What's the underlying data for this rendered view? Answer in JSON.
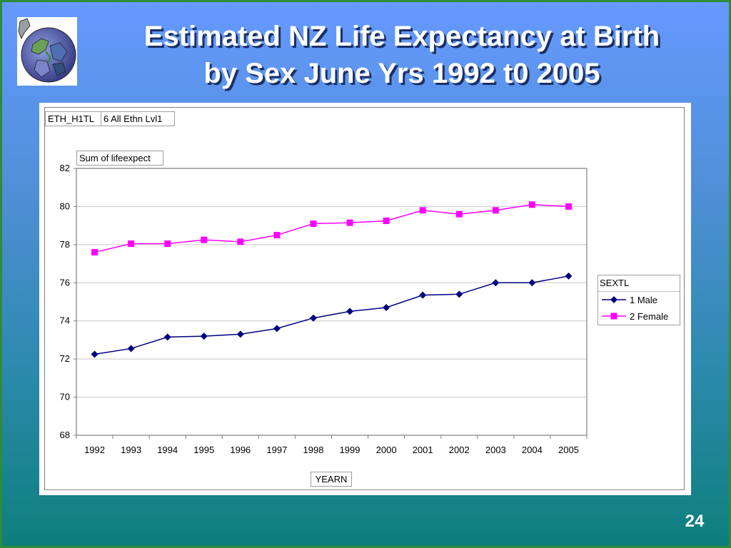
{
  "slide": {
    "title_line1": "Estimated NZ Life Expectancy at Birth",
    "title_line2": "by Sex June Yrs 1992 t0 2005",
    "page_number": "24",
    "logo_icon": "globe-icon"
  },
  "pivot": {
    "filter_field": "ETH_H1TL",
    "filter_value": "6 All Ethn Lvl1",
    "data_field": "Sum of lifeexpect",
    "legend_title": "SEXTL"
  },
  "chart_data": {
    "type": "line",
    "title": "",
    "xlabel": "YEARN",
    "ylabel": "",
    "categories": [
      "1992",
      "1993",
      "1994",
      "1995",
      "1996",
      "1997",
      "1998",
      "1999",
      "2000",
      "2001",
      "2002",
      "2003",
      "2004",
      "2005"
    ],
    "ylim": [
      68,
      82
    ],
    "yticks": [
      68,
      70,
      72,
      74,
      76,
      78,
      80,
      82
    ],
    "grid": true,
    "legend_position": "right",
    "series": [
      {
        "name": "1 Male",
        "color": "#000080",
        "marker": "diamond",
        "values": [
          72.25,
          72.55,
          73.15,
          73.2,
          73.3,
          73.6,
          74.15,
          74.5,
          74.7,
          75.35,
          75.4,
          76.0,
          76.0,
          76.35
        ]
      },
      {
        "name": "2 Female",
        "color": "#ff00ff",
        "marker": "square",
        "values": [
          77.6,
          78.05,
          78.05,
          78.25,
          78.15,
          78.5,
          79.1,
          79.15,
          79.25,
          79.8,
          79.6,
          79.8,
          80.1,
          80.0
        ]
      }
    ]
  }
}
